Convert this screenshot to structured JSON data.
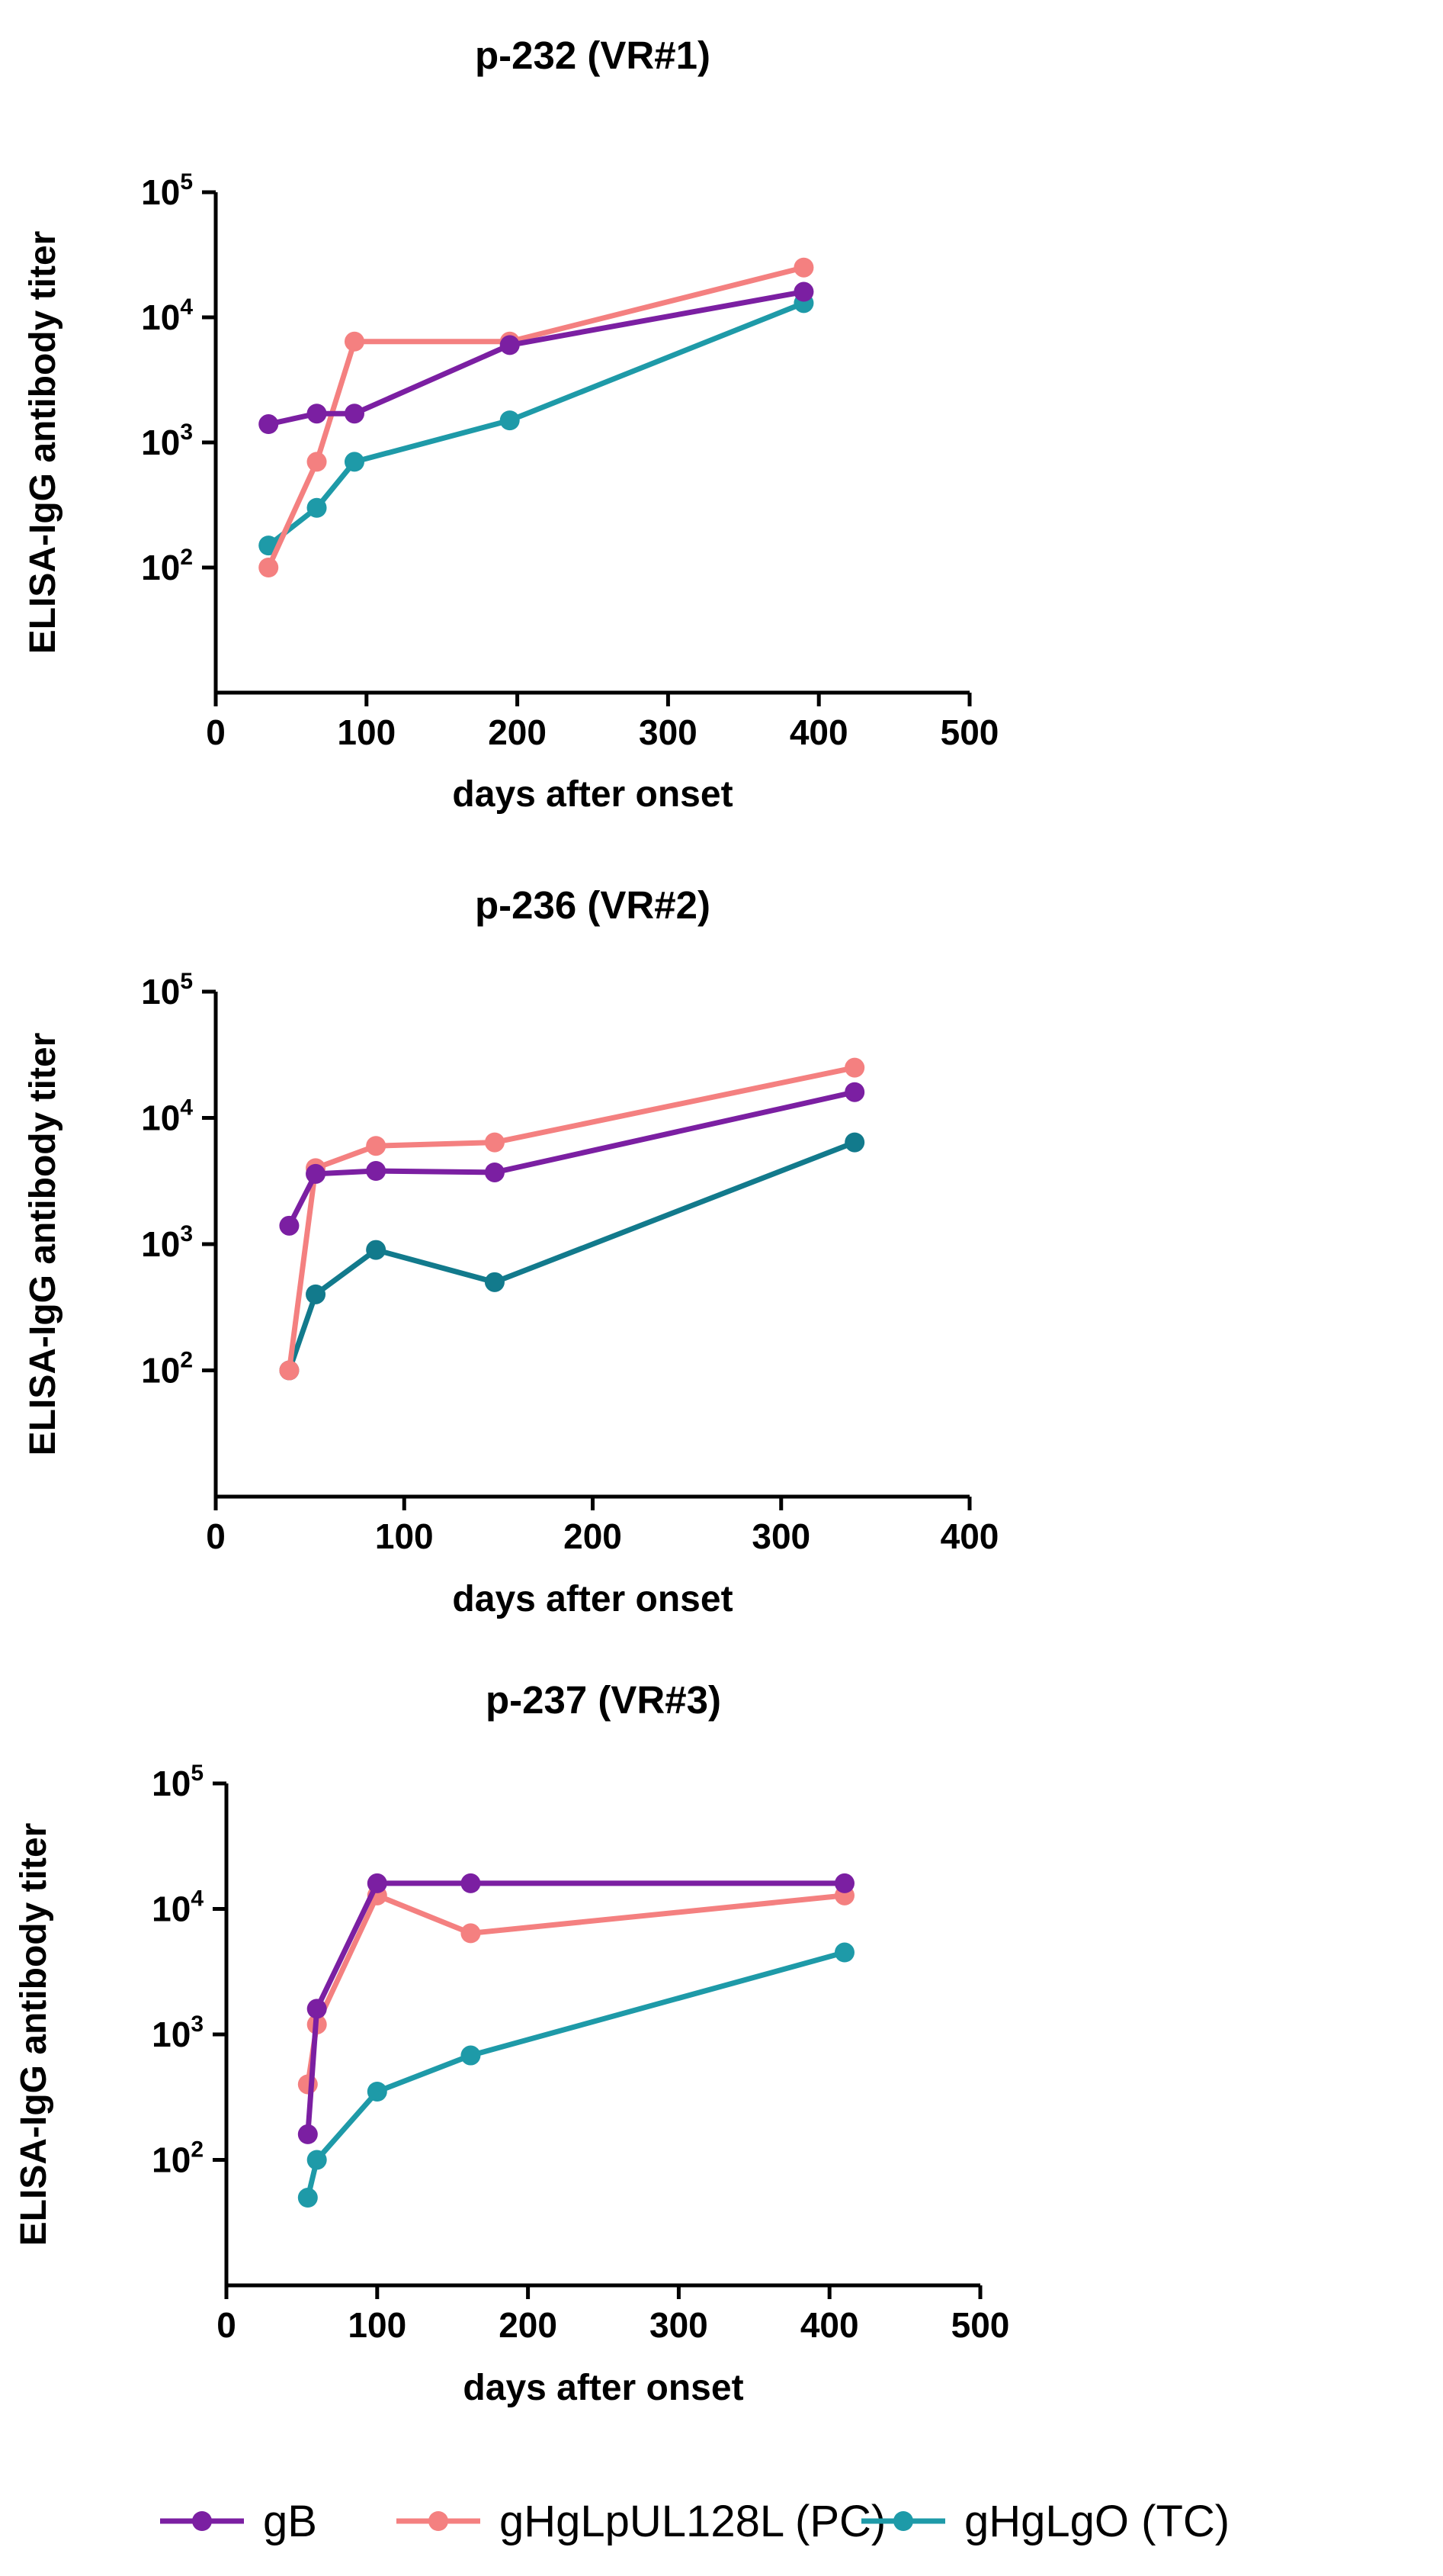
{
  "chart_data": [
    {
      "type": "line",
      "title": "p-232 (VR#1)",
      "xlabel": "days after onset",
      "ylabel": "ELISA-IgG antibody titer",
      "xlim": [
        0,
        500
      ],
      "xticks": [
        0,
        100,
        200,
        300,
        400,
        500
      ],
      "yscale": "log",
      "ylim": [
        10,
        100000
      ],
      "yticks": [
        {
          "value": 100,
          "base": "10",
          "exp": "2"
        },
        {
          "value": 1000,
          "base": "10",
          "exp": "3"
        },
        {
          "value": 10000,
          "base": "10",
          "exp": "4"
        },
        {
          "value": 100000,
          "base": "10",
          "exp": "5"
        }
      ],
      "series": [
        {
          "name": "gB",
          "color": "#7B1FA2",
          "x": [
            35,
            67,
            92,
            195,
            390
          ],
          "y": [
            1400,
            1700,
            1700,
            6000,
            16000
          ]
        },
        {
          "name": "gHgLpUL128L (PC)",
          "color": "#F48080",
          "x": [
            35,
            67,
            92,
            195,
            390
          ],
          "y": [
            100,
            700,
            6400,
            6400,
            25000
          ]
        },
        {
          "name": "gHgLgO (TC)",
          "color": "#1E9AA8",
          "x": [
            35,
            67,
            92,
            195,
            390
          ],
          "y": [
            150,
            300,
            700,
            1500,
            13000
          ]
        }
      ]
    },
    {
      "type": "line",
      "title": "p-236 (VR#2)",
      "xlabel": "days after onset",
      "ylabel": "ELISA-IgG antibody titer",
      "xlim": [
        0,
        400
      ],
      "xticks": [
        0,
        100,
        200,
        300,
        400
      ],
      "yscale": "log",
      "ylim": [
        10,
        100000
      ],
      "yticks": [
        {
          "value": 100,
          "base": "10",
          "exp": "2"
        },
        {
          "value": 1000,
          "base": "10",
          "exp": "3"
        },
        {
          "value": 10000,
          "base": "10",
          "exp": "4"
        },
        {
          "value": 100000,
          "base": "10",
          "exp": "5"
        }
      ],
      "series": [
        {
          "name": "gB",
          "color": "#7B1FA2",
          "x": [
            39,
            53,
            85,
            148,
            339
          ],
          "y": [
            1400,
            3600,
            3800,
            3700,
            16000
          ]
        },
        {
          "name": "gHgLpUL128L (PC)",
          "color": "#F48080",
          "x": [
            39,
            53,
            85,
            148,
            339
          ],
          "y": [
            100,
            4000,
            6000,
            6400,
            25000
          ]
        },
        {
          "name": "gHgLgO (TC)",
          "color": "#127A8C",
          "x": [
            39,
            53,
            85,
            148,
            339
          ],
          "y": [
            100,
            400,
            900,
            500,
            6400
          ]
        }
      ]
    },
    {
      "type": "line",
      "title": "p-237 (VR#3)",
      "xlabel": "days after onset",
      "ylabel": "ELISA-IgG antibody titer",
      "xlim": [
        0,
        500
      ],
      "xticks": [
        0,
        100,
        200,
        300,
        400,
        500
      ],
      "yscale": "log",
      "ylim": [
        10,
        100000
      ],
      "yticks": [
        {
          "value": 100,
          "base": "10",
          "exp": "2"
        },
        {
          "value": 1000,
          "base": "10",
          "exp": "3"
        },
        {
          "value": 10000,
          "base": "10",
          "exp": "4"
        },
        {
          "value": 100000,
          "base": "10",
          "exp": "5"
        }
      ],
      "series": [
        {
          "name": "gB",
          "color": "#7B1FA2",
          "x": [
            54,
            60,
            100,
            162,
            410
          ],
          "y": [
            160,
            1600,
            16000,
            16000,
            16000
          ]
        },
        {
          "name": "gHgLpUL128L (PC)",
          "color": "#F48080",
          "x": [
            54,
            60,
            100,
            162,
            410
          ],
          "y": [
            400,
            1200,
            12800,
            6400,
            12800
          ]
        },
        {
          "name": "gHgLgO (TC)",
          "color": "#1E9AA8",
          "x": [
            54,
            60,
            100,
            162,
            410
          ],
          "y": [
            50,
            100,
            350,
            680,
            4500
          ]
        }
      ]
    }
  ],
  "legend": {
    "position": "bottom",
    "items": [
      {
        "label": "gB",
        "color": "#7B1FA2"
      },
      {
        "label": "gHgLpUL128L (PC)",
        "color": "#F48080"
      },
      {
        "label": "gHgLgO (TC)",
        "color": "#1E9AA8"
      }
    ]
  }
}
